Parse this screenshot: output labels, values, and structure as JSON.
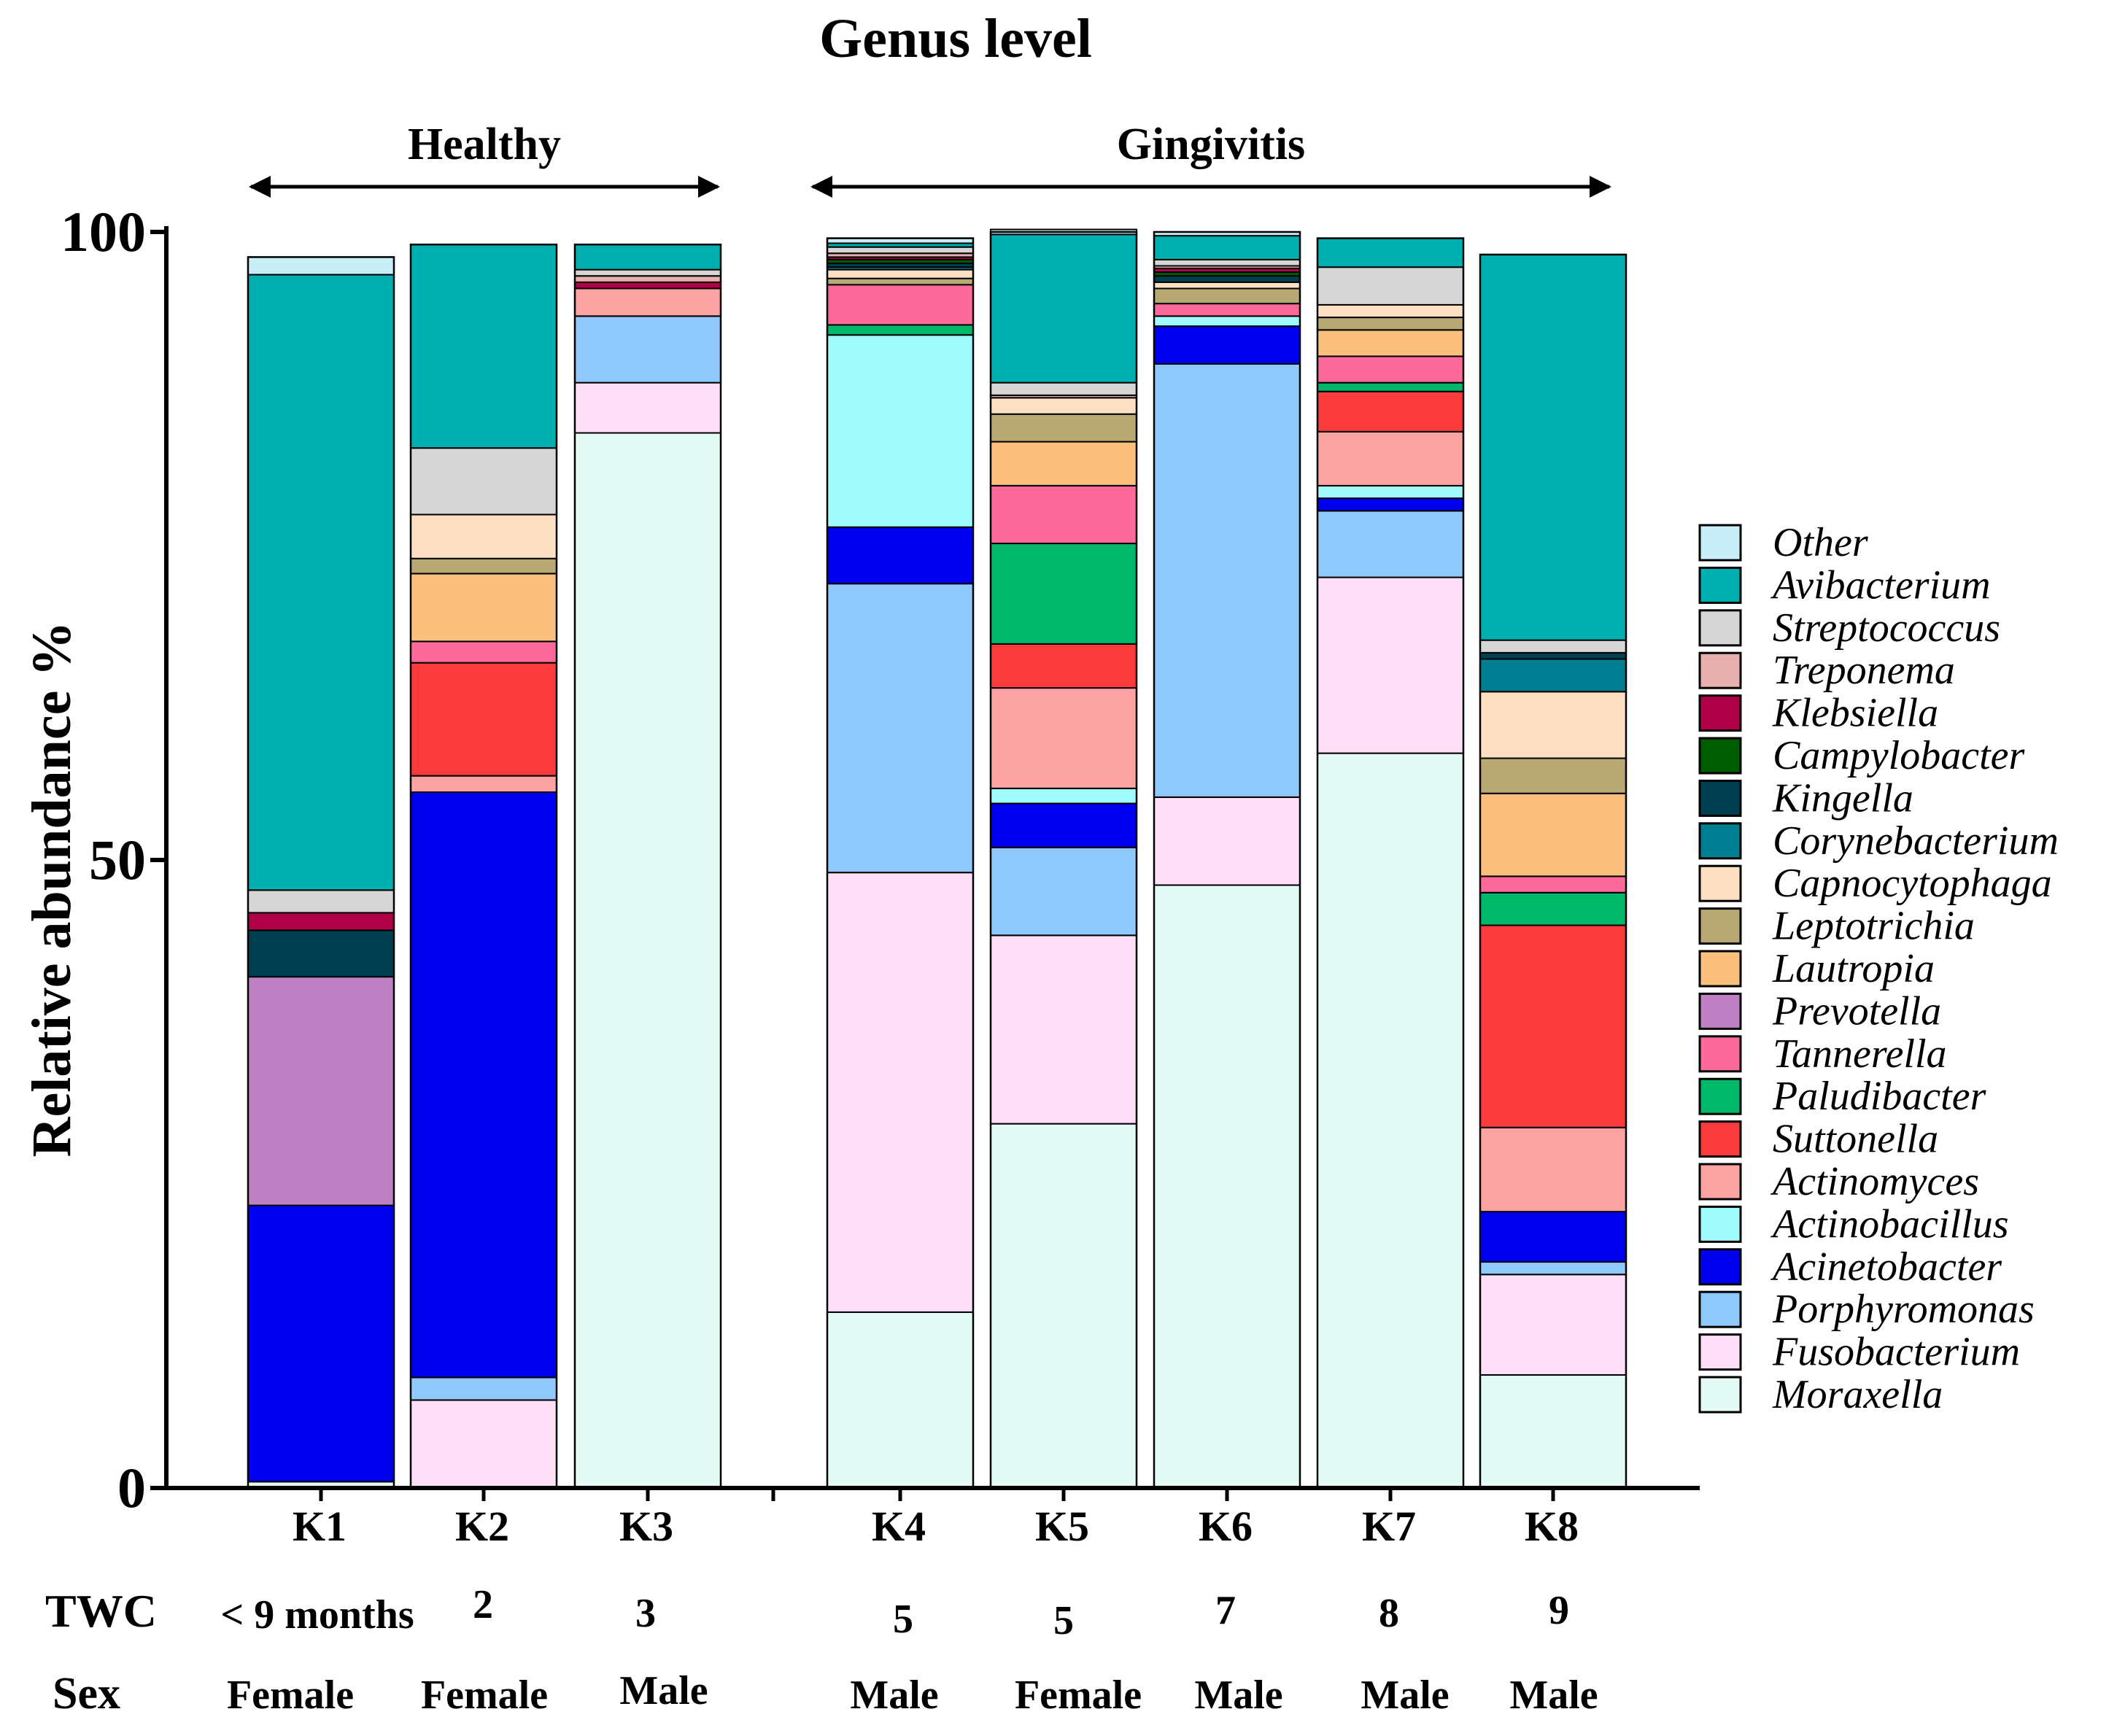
{
  "chart_data": {
    "type": "bar",
    "stacked": true,
    "title": "Genus level",
    "ylabel": "Relative abundance %",
    "ylim": [
      0,
      100
    ],
    "yticks": [
      "0",
      "50",
      "100"
    ],
    "groups": [
      {
        "label": "Healthy",
        "samples": [
          "K1",
          "K2",
          "K3"
        ]
      },
      {
        "label": "Gingivitis",
        "samples": [
          "K4",
          "K5",
          "K6",
          "K7",
          "K8"
        ]
      }
    ],
    "categories": [
      "K1",
      "K2",
      "K3",
      "K4",
      "K5",
      "K6",
      "K7",
      "K8"
    ],
    "info_rows": [
      {
        "label": "TWC",
        "values": [
          "< 9  months",
          "2",
          "3",
          "5",
          "5",
          "7",
          "8",
          "9"
        ]
      },
      {
        "label": "Sex",
        "values": [
          "Female",
          "Female",
          "Male",
          "Male",
          "Female",
          "Male",
          "Male",
          "Male"
        ]
      }
    ],
    "legend_title_order": [
      "Other",
      "Avibacterium",
      "Streptococcus",
      "Treponema",
      "Klebsiella",
      "Campylobacter",
      "Kingella",
      "Corynebacterium",
      "Capnocytophaga",
      "Leptotrichia",
      "Lautropia",
      "Prevotella",
      "Tannerella",
      "Paludibacter",
      "Suttonella",
      "Actinomyces",
      "Actinobacillus",
      "Acinetobacter",
      "Porphyromonas",
      "Fusobacterium",
      "Moraxella"
    ],
    "series": [
      {
        "name": "Moraxella",
        "color": "#E4FAF4",
        "values": [
          0.5,
          0,
          84,
          14,
          29,
          48,
          58.5,
          9
        ]
      },
      {
        "name": "Fusobacterium",
        "color": "#FEDFF7",
        "values": [
          0,
          7,
          4,
          35,
          15,
          7,
          14,
          8
        ]
      },
      {
        "name": "Porphyromonas",
        "color": "#8FC8FB",
        "values": [
          0,
          1.8,
          5.3,
          23,
          7,
          34.5,
          5.3,
          1
        ]
      },
      {
        "name": "Acinetobacter",
        "color": "#0000F0",
        "values": [
          22,
          46.6,
          0,
          4.5,
          3.5,
          3,
          1,
          4
        ]
      },
      {
        "name": "Actinobacillus",
        "color": "#A0FCFC",
        "values": [
          0,
          0,
          0,
          15.3,
          1.2,
          0.8,
          1,
          0
        ]
      },
      {
        "name": "Actinomyces",
        "color": "#FBA3A3",
        "values": [
          0,
          1.3,
          2.2,
          0,
          8,
          0,
          4.3,
          6.7
        ]
      },
      {
        "name": "Suttonella",
        "color": "#FB3B3B",
        "values": [
          0,
          9,
          0,
          0,
          3.5,
          0,
          3.2,
          16.1
        ]
      },
      {
        "name": "Paludibacter",
        "color": "#00B76A",
        "values": [
          0,
          0,
          0,
          0.8,
          8,
          0,
          0.7,
          2.6
        ]
      },
      {
        "name": "Tannerella",
        "color": "#FB6A9B",
        "values": [
          0,
          1.7,
          0,
          3.2,
          4.6,
          1,
          2.1,
          1.3
        ]
      },
      {
        "name": "Prevotella",
        "color": "#BF80C4",
        "values": [
          18.2,
          0,
          0,
          0,
          0,
          0,
          0,
          0
        ]
      },
      {
        "name": "Lautropia",
        "color": "#FCC07E",
        "values": [
          0,
          5.4,
          0,
          0,
          3.5,
          0,
          2.1,
          6.6
        ]
      },
      {
        "name": "Leptotrichia",
        "color": "#B7A874",
        "values": [
          0,
          1.2,
          0,
          0.5,
          2.2,
          1.2,
          1,
          2.8
        ]
      },
      {
        "name": "Capnocytophaga",
        "color": "#FDE0C4",
        "values": [
          0,
          3.5,
          0,
          0.7,
          1.3,
          0.5,
          1,
          5.3
        ]
      },
      {
        "name": "Corynebacterium",
        "color": "#007E91",
        "values": [
          0,
          0,
          0,
          0.2,
          0,
          0,
          0,
          2.6
        ]
      },
      {
        "name": "Kingella",
        "color": "#003F4F",
        "values": [
          3.7,
          0,
          0,
          0.3,
          0,
          0.5,
          0,
          0.5
        ]
      },
      {
        "name": "Campylobacter",
        "color": "#005C00",
        "values": [
          0,
          0,
          0,
          0.3,
          0,
          0.3,
          0,
          0
        ]
      },
      {
        "name": "Klebsiella",
        "color": "#B00047",
        "values": [
          1.4,
          0,
          0.5,
          0.2,
          0,
          0.3,
          0,
          0
        ]
      },
      {
        "name": "Treponema",
        "color": "#E8AFAF",
        "values": [
          0,
          0,
          0.5,
          0.3,
          0.2,
          0.2,
          0,
          0
        ]
      },
      {
        "name": "Streptococcus",
        "color": "#D6D6D6",
        "values": [
          1.8,
          5.3,
          0.5,
          0.5,
          1,
          0.5,
          3,
          1
        ]
      },
      {
        "name": "Avibacterium",
        "color": "#00AFAF",
        "values": [
          49,
          16.2,
          2,
          0.3,
          11.8,
          1.9,
          2.3,
          30.7
        ]
      },
      {
        "name": "Other",
        "color": "#C8EEF8",
        "values": [
          1.4,
          0,
          0,
          0.4,
          0.4,
          0.3,
          0,
          0
        ]
      }
    ]
  }
}
